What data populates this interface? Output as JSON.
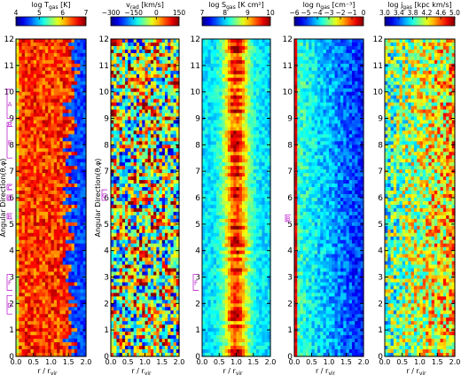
{
  "figure": {
    "y_axis_label": "Angular Direction(θ,φ)",
    "x_axis_label_main": "r / r",
    "x_axis_label_sub": "vir"
  },
  "chart_data": [
    {
      "type": "heatmap",
      "quantity": "T_gas",
      "colorbar_label_main": "log T",
      "colorbar_label_sub": "gas",
      "colorbar_label_unit": " [K]",
      "colorbar_ticks": [
        "4",
        "5",
        "6",
        "7"
      ],
      "colorbar_range": [
        4,
        7
      ],
      "colormap": "jet",
      "xlim": [
        0,
        2
      ],
      "ylim": [
        0,
        12
      ],
      "x_ticks": [
        "0.0",
        "0.5",
        "1.0",
        "1.5",
        "2.0"
      ],
      "y_ticks": [
        "0",
        "1",
        "2",
        "3",
        "4",
        "5",
        "6",
        "7",
        "8",
        "9",
        "10",
        "11",
        "12"
      ],
      "show_y_label": true,
      "region_markers": [
        {
          "label": "A",
          "y_from": 9.0,
          "y_to": 10.1
        },
        {
          "label": "B",
          "y_from": 8.7,
          "y_to": 8.85
        },
        {
          "label": "E",
          "y_from": 7.5,
          "y_to": 8.7
        },
        {
          "label": "C",
          "y_from": 6.3,
          "y_to": 6.5
        },
        {
          "label": "G",
          "y_from": 5.9,
          "y_to": 6.1
        },
        {
          "label": "B",
          "y_from": 5.2,
          "y_to": 5.4
        },
        {
          "label": "F",
          "y_from": 2.5,
          "y_to": 3.1
        },
        {
          "label": "D",
          "y_from": 1.6,
          "y_to": 2.3
        }
      ]
    },
    {
      "type": "heatmap",
      "quantity": "v_rad",
      "colorbar_label_main": "v",
      "colorbar_label_sub": "rad",
      "colorbar_label_unit": " [km/s]",
      "colorbar_ticks": [
        "−300",
        "−150",
        "0",
        "150"
      ],
      "colorbar_range": [
        -300,
        150
      ],
      "colormap": "jet",
      "xlim": [
        0,
        2
      ],
      "ylim": [
        0,
        12
      ],
      "x_ticks": [
        "0.0",
        "0.5",
        "1.0",
        "1.5",
        "2.0"
      ],
      "y_ticks": [
        "0",
        "1",
        "2",
        "3",
        "4",
        "5",
        "6",
        "7",
        "8",
        "9",
        "10",
        "11",
        "12"
      ],
      "show_y_label": true,
      "region_markers": [
        {
          "label": "G",
          "y_from": 5.9,
          "y_to": 6.3
        }
      ]
    },
    {
      "type": "heatmap",
      "quantity": "S_gas",
      "colorbar_label_main": "log S",
      "colorbar_label_sub": "gas",
      "colorbar_label_unit": " [K cm²]",
      "colorbar_ticks": [
        "7",
        "8",
        "9",
        "10"
      ],
      "colorbar_range": [
        7,
        10
      ],
      "colormap": "jet",
      "xlim": [
        0,
        2
      ],
      "ylim": [
        0,
        12
      ],
      "x_ticks": [
        "0.0",
        "0.5",
        "1.0",
        "1.5",
        "2.0"
      ],
      "y_ticks": [
        "0",
        "1",
        "2",
        "3",
        "4",
        "5",
        "6",
        "7",
        "8",
        "9",
        "10",
        "11",
        "12"
      ],
      "show_y_label": false,
      "region_markers": [
        {
          "label": "F",
          "y_from": 2.5,
          "y_to": 3.1
        }
      ]
    },
    {
      "type": "heatmap",
      "quantity": "n_gas",
      "colorbar_label_main": "log n",
      "colorbar_label_sub": "gas",
      "colorbar_label_unit": " [cm⁻³]",
      "colorbar_ticks": [
        "−6",
        "−5",
        "−4",
        "−3",
        "−2",
        "−1",
        "0"
      ],
      "colorbar_range": [
        -6,
        0
      ],
      "colormap": "jet",
      "xlim": [
        0,
        2
      ],
      "ylim": [
        0,
        12
      ],
      "x_ticks": [
        "0.0",
        "0.5",
        "1.0",
        "1.5",
        "2.0"
      ],
      "y_ticks": [
        "0",
        "1",
        "2",
        "3",
        "4",
        "5",
        "6",
        "7",
        "8",
        "9",
        "10",
        "11",
        "12"
      ],
      "show_y_label": false,
      "region_markers": [
        {
          "label": "B",
          "y_from": 5.1,
          "y_to": 5.35
        }
      ]
    },
    {
      "type": "heatmap",
      "quantity": "j_gas",
      "colorbar_label_main": "log j",
      "colorbar_label_sub": "gas",
      "colorbar_label_unit": " [kpc km/s]",
      "colorbar_ticks": [
        "3.0",
        "3.4",
        "3.8",
        "4.2",
        "4.6",
        "5.0"
      ],
      "colorbar_range": [
        3.0,
        5.0
      ],
      "colormap": "jet",
      "xlim": [
        0,
        2
      ],
      "ylim": [
        0,
        12
      ],
      "x_ticks": [
        "0.0",
        "0.5",
        "1.0",
        "1.5",
        "2.0"
      ],
      "y_ticks": [
        "0",
        "1",
        "2",
        "3",
        "4",
        "5",
        "6",
        "7",
        "8",
        "9",
        "10",
        "11",
        "12"
      ],
      "show_y_label": false,
      "region_markers": []
    }
  ]
}
